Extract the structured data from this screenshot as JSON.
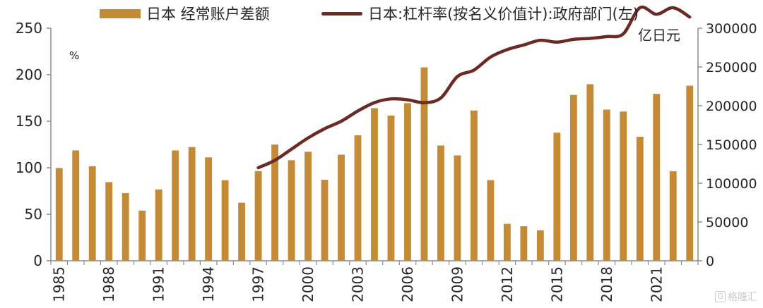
{
  "legend": {
    "bar_label": "日本 经常账户差额",
    "line_label": "日本:杠杆率(按名义价值计):政府部门(左)"
  },
  "left_unit": "%",
  "right_unit": "亿日元",
  "watermark": "格隆汇",
  "colors": {
    "bar": "#c48a35",
    "line": "#6b2a24",
    "axis": "#8c8c8c",
    "text": "#262626"
  },
  "chart_data": {
    "type": "bar",
    "x": [
      1985,
      1986,
      1987,
      1988,
      1989,
      1990,
      1991,
      1992,
      1993,
      1994,
      1995,
      1996,
      1997,
      1998,
      1999,
      2000,
      2001,
      2002,
      2003,
      2004,
      2005,
      2006,
      2007,
      2008,
      2009,
      2010,
      2011,
      2012,
      2013,
      2014,
      2015,
      2016,
      2017,
      2018,
      2019,
      2020,
      2021,
      2022,
      2023
    ],
    "x_tick_labels": [
      "1985",
      "1988",
      "1991",
      "1994",
      "1997",
      "2000",
      "2003",
      "2006",
      "2009",
      "2012",
      "2015",
      "2018",
      "2021"
    ],
    "left_axis": {
      "ticks": [
        0,
        50,
        100,
        150,
        200,
        250
      ],
      "ylim": [
        0,
        250
      ]
    },
    "right_axis": {
      "ticks": [
        0,
        50000,
        100000,
        150000,
        200000,
        250000,
        300000
      ],
      "ylim": [
        0,
        300000
      ]
    },
    "series": [
      {
        "name": "日本 经常账户差额",
        "type": "bar",
        "axis": "right",
        "values": [
          119700,
          142400,
          121900,
          101500,
          87200,
          64700,
          92000,
          142300,
          146700,
          133400,
          103900,
          74900,
          115700,
          149900,
          129700,
          140600,
          104500,
          136800,
          161900,
          196900,
          187300,
          203300,
          249500,
          148700,
          135900,
          193800,
          104000,
          47600,
          44600,
          39400,
          165200,
          213900,
          227800,
          195000,
          192500,
          159900,
          215300,
          115500,
          225800
        ]
      },
      {
        "name": "日本:杠杆率(按名义价值计):政府部门(左)",
        "type": "line",
        "axis": "left",
        "x": [
          1997,
          1998,
          1999,
          2000,
          2001,
          2002,
          2003,
          2004,
          2005,
          2006,
          2007,
          2008,
          2009,
          2010,
          2011,
          2012,
          2013,
          2014,
          2015,
          2016,
          2017,
          2018,
          2019,
          2020,
          2021,
          2022,
          2023
        ],
        "values": [
          100,
          108,
          120,
          132,
          142,
          150,
          161,
          170,
          174,
          173,
          170,
          175,
          198,
          205,
          219,
          227,
          232,
          237,
          235,
          238,
          239,
          241,
          244,
          272,
          265,
          272,
          262
        ]
      }
    ]
  }
}
